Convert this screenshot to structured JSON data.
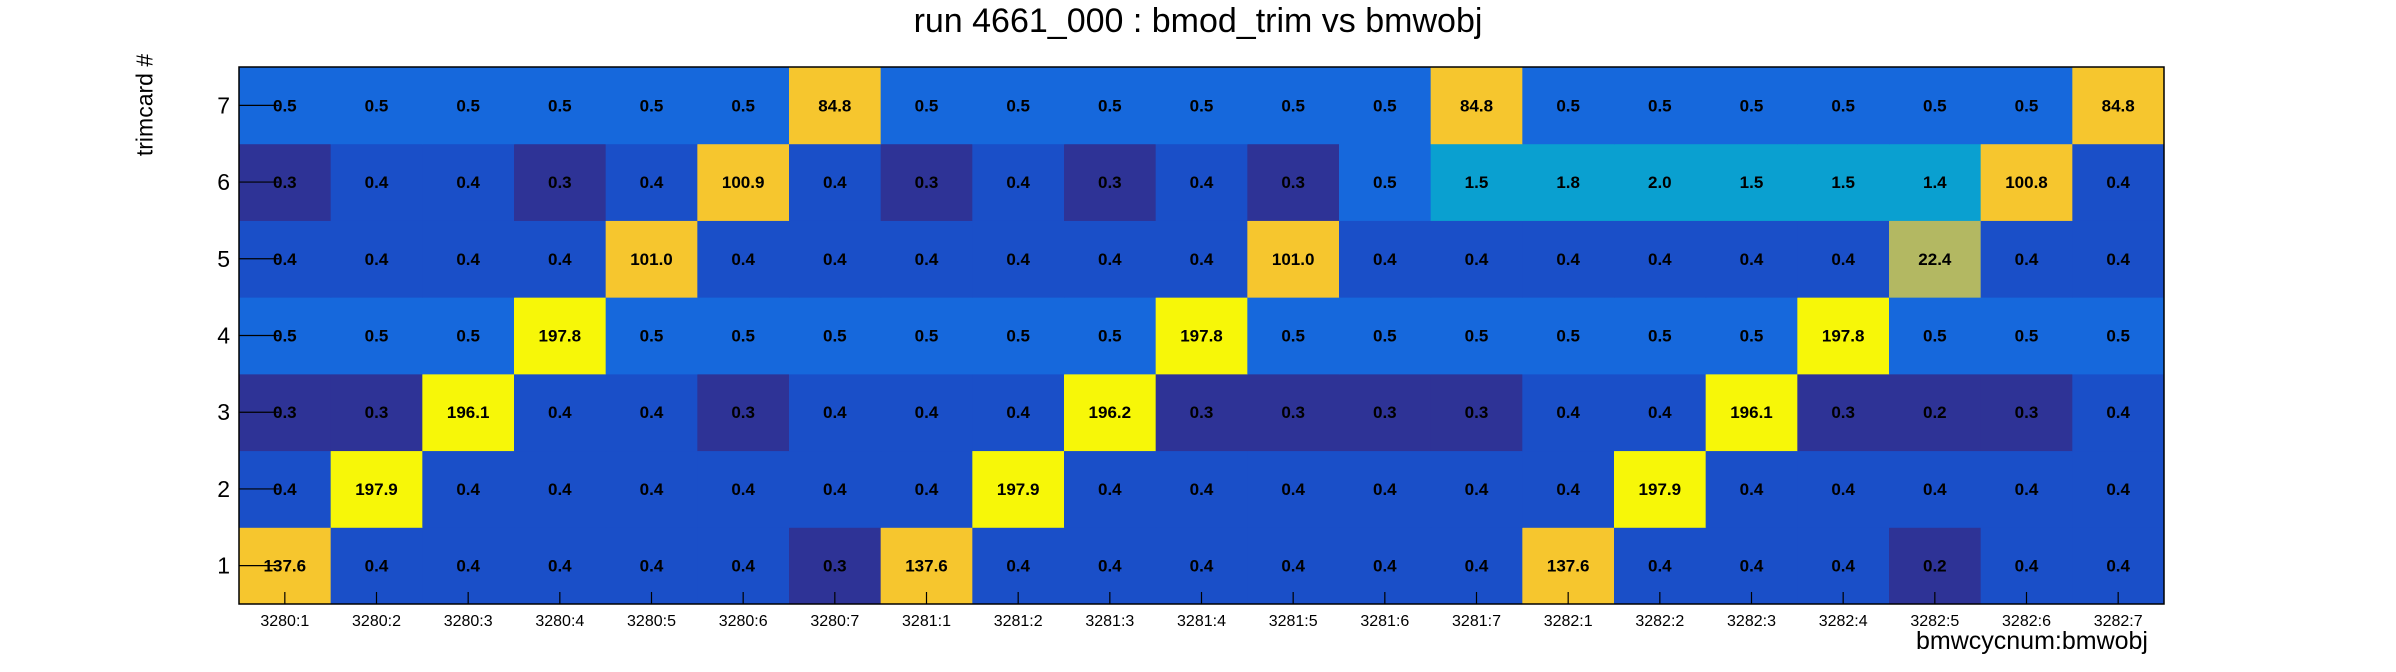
{
  "chart_data": {
    "type": "heatmap",
    "title": "run 4661_000 : bmod_trim vs bmwobj",
    "xlabel": "bmwcycnum:bmwobj",
    "ylabel": "trimcard #",
    "x_categories": [
      "3280:1",
      "3280:2",
      "3280:3",
      "3280:4",
      "3280:5",
      "3280:6",
      "3280:7",
      "3281:1",
      "3281:2",
      "3281:3",
      "3281:4",
      "3281:5",
      "3281:6",
      "3281:7",
      "3282:1",
      "3282:2",
      "3282:3",
      "3282:4",
      "3282:5",
      "3282:6",
      "3282:7"
    ],
    "y_categories": [
      "1",
      "2",
      "3",
      "4",
      "5",
      "6",
      "7"
    ],
    "values": [
      [
        "137.6",
        "0.4",
        "0.4",
        "0.4",
        "0.4",
        "0.4",
        "0.3",
        "137.6",
        "0.4",
        "0.4",
        "0.4",
        "0.4",
        "0.4",
        "0.4",
        "137.6",
        "0.4",
        "0.4",
        "0.4",
        "0.2",
        "0.4",
        "0.4"
      ],
      [
        "0.4",
        "197.9",
        "0.4",
        "0.4",
        "0.4",
        "0.4",
        "0.4",
        "0.4",
        "197.9",
        "0.4",
        "0.4",
        "0.4",
        "0.4",
        "0.4",
        "0.4",
        "197.9",
        "0.4",
        "0.4",
        "0.4",
        "0.4",
        "0.4"
      ],
      [
        "0.3",
        "0.3",
        "196.1",
        "0.4",
        "0.4",
        "0.3",
        "0.4",
        "0.4",
        "0.4",
        "196.2",
        "0.3",
        "0.3",
        "0.3",
        "0.3",
        "0.4",
        "0.4",
        "196.1",
        "0.3",
        "0.2",
        "0.3",
        "0.4"
      ],
      [
        "0.5",
        "0.5",
        "0.5",
        "197.8",
        "0.5",
        "0.5",
        "0.5",
        "0.5",
        "0.5",
        "0.5",
        "197.8",
        "0.5",
        "0.5",
        "0.5",
        "0.5",
        "0.5",
        "0.5",
        "197.8",
        "0.5",
        "0.5",
        "0.5"
      ],
      [
        "0.4",
        "0.4",
        "0.4",
        "0.4",
        "101.0",
        "0.4",
        "0.4",
        "0.4",
        "0.4",
        "0.4",
        "0.4",
        "101.0",
        "0.4",
        "0.4",
        "0.4",
        "0.4",
        "0.4",
        "0.4",
        "22.4",
        "0.4",
        "0.4"
      ],
      [
        "0.3",
        "0.4",
        "0.4",
        "0.3",
        "0.4",
        "100.9",
        "0.4",
        "0.3",
        "0.4",
        "0.3",
        "0.4",
        "0.3",
        "0.5",
        "1.5",
        "1.8",
        "2.0",
        "1.5",
        "1.5",
        "1.4",
        "100.8",
        "0.4"
      ],
      [
        "0.5",
        "0.5",
        "0.5",
        "0.5",
        "0.5",
        "0.5",
        "84.8",
        "0.5",
        "0.5",
        "0.5",
        "0.5",
        "0.5",
        "0.5",
        "84.8",
        "0.5",
        "0.5",
        "0.5",
        "0.5",
        "0.5",
        "0.5",
        "84.8"
      ]
    ],
    "colors": {
      "low": "#2e3396",
      "mid_low": "#1a4fc8",
      "mid": "#1668dc",
      "cyan": "#0aa0d0",
      "olive": "#b3b862",
      "orange": "#f6c62e",
      "yellow": "#f7f708",
      "frame": "#000000",
      "background": "#ffffff"
    },
    "grid": false,
    "legend": "none"
  }
}
